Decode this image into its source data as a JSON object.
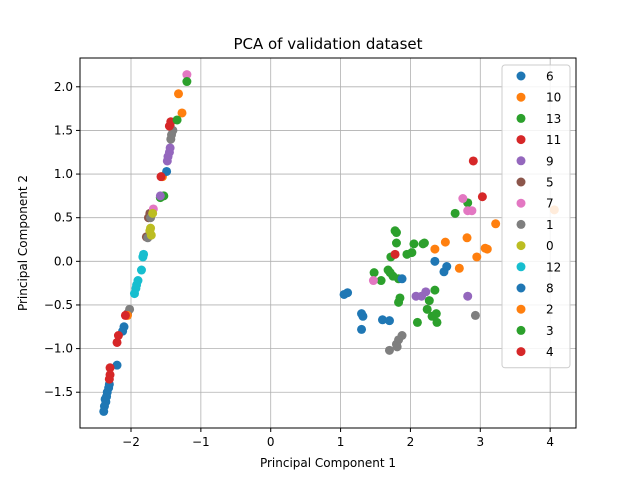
{
  "chart_data": {
    "type": "scatter",
    "title": "PCA of validation dataset",
    "xlabel": "Principal Component 1",
    "ylabel": "Principal Component 2",
    "xlim": [
      -2.73,
      4.37
    ],
    "ylim": [
      -1.91,
      2.33
    ],
    "xticks": [
      -2,
      -1,
      0,
      1,
      2,
      3,
      4
    ],
    "yticks": [
      -1.5,
      -1.0,
      -0.5,
      0.0,
      0.5,
      1.0,
      1.5,
      2.0
    ],
    "grid": true,
    "legend_position": "top-right",
    "series": [
      {
        "name": "6",
        "color": "#1f77b4",
        "points": [
          [
            -2.37,
            -1.58
          ],
          [
            -2.36,
            -1.61
          ],
          [
            -2.38,
            -1.66
          ],
          [
            -2.39,
            -1.72
          ],
          [
            -2.34,
            -1.5
          ],
          [
            -2.31,
            -1.41
          ],
          [
            -2.32,
            -1.45
          ],
          [
            -2.35,
            -1.55
          ]
        ]
      },
      {
        "name": "10",
        "color": "#ff7f0e",
        "points": [
          [
            -1.27,
            1.7
          ],
          [
            -1.32,
            1.92
          ],
          [
            -1.55,
            0.97
          ],
          [
            2.35,
            0.14
          ],
          [
            2.5,
            0.22
          ],
          [
            2.7,
            -0.08
          ],
          [
            2.81,
            0.27
          ],
          [
            2.95,
            0.05
          ],
          [
            3.07,
            0.15
          ],
          [
            3.1,
            0.14
          ],
          [
            3.22,
            0.43
          ],
          [
            4.06,
            0.59
          ]
        ]
      },
      {
        "name": "13",
        "color": "#2ca02c",
        "points": [
          [
            -1.58,
            0.73
          ],
          [
            -1.53,
            0.75
          ],
          [
            1.48,
            -0.13
          ],
          [
            1.58,
            -0.22
          ],
          [
            1.68,
            -0.1
          ],
          [
            1.72,
            0.05
          ],
          [
            1.78,
            0.35
          ],
          [
            1.8,
            0.33
          ],
          [
            1.8,
            0.21
          ],
          [
            1.83,
            -0.2
          ],
          [
            1.85,
            -0.42
          ],
          [
            2.02,
            0.1
          ],
          [
            2.05,
            0.2
          ],
          [
            2.1,
            -0.7
          ],
          [
            2.18,
            0.2
          ],
          [
            2.2,
            0.21
          ],
          [
            2.24,
            -0.55
          ],
          [
            2.27,
            -0.45
          ],
          [
            2.31,
            -0.63
          ],
          [
            2.35,
            -0.33
          ],
          [
            2.37,
            -0.6
          ],
          [
            2.38,
            -0.7
          ],
          [
            2.64,
            0.55
          ],
          [
            2.82,
            0.67
          ],
          [
            1.75,
            -0.17
          ]
        ]
      },
      {
        "name": "11",
        "color": "#d62728",
        "points": [
          [
            -1.44,
            1.55
          ],
          [
            -1.43,
            1.6
          ],
          [
            2.9,
            1.15
          ],
          [
            3.03,
            0.74
          ]
        ]
      },
      {
        "name": "9",
        "color": "#9467bd",
        "points": [
          [
            -1.48,
            1.15
          ],
          [
            -1.47,
            1.2
          ],
          [
            -1.45,
            1.25
          ],
          [
            -1.44,
            1.3
          ],
          [
            -1.58,
            0.75
          ],
          [
            2.08,
            -0.4
          ],
          [
            2.16,
            -0.4
          ],
          [
            2.22,
            -0.35
          ],
          [
            2.82,
            -0.4
          ]
        ]
      },
      {
        "name": "5",
        "color": "#8c564b",
        "points": [
          [
            -1.75,
            0.5
          ],
          [
            -1.73,
            0.55
          ],
          [
            -1.78,
            0.28
          ],
          [
            -2.05,
            -0.6
          ]
        ]
      },
      {
        "name": "7",
        "color": "#e377c2",
        "points": [
          [
            -1.2,
            2.14
          ],
          [
            -1.68,
            0.6
          ],
          [
            1.47,
            -0.22
          ],
          [
            2.75,
            0.72
          ],
          [
            2.82,
            0.58
          ],
          [
            2.88,
            0.58
          ]
        ]
      },
      {
        "name": "1",
        "color": "#7f7f7f",
        "points": [
          [
            -1.42,
            1.45
          ],
          [
            -1.43,
            1.4
          ],
          [
            -1.4,
            1.5
          ],
          [
            -1.72,
            0.5
          ],
          [
            -1.76,
            0.27
          ],
          [
            -2.02,
            -0.55
          ],
          [
            1.7,
            -1.02
          ],
          [
            1.8,
            -0.95
          ],
          [
            1.83,
            -0.9
          ],
          [
            1.88,
            -0.85
          ],
          [
            1.81,
            -0.98
          ],
          [
            2.93,
            -0.62
          ]
        ]
      },
      {
        "name": "0",
        "color": "#bcbd22",
        "points": [
          [
            -1.72,
            0.38
          ],
          [
            -1.71,
            0.3
          ],
          [
            -1.73,
            0.35
          ],
          [
            -1.69,
            0.55
          ]
        ]
      },
      {
        "name": "12",
        "color": "#17becf",
        "points": [
          [
            -1.83,
            0.05
          ],
          [
            -1.82,
            0.08
          ],
          [
            -1.85,
            -0.1
          ],
          [
            -1.9,
            -0.22
          ],
          [
            -1.93,
            -0.31
          ],
          [
            -1.95,
            -0.37
          ],
          [
            -1.92,
            -0.27
          ]
        ]
      },
      {
        "name": "8",
        "color": "#1f77b4",
        "points": [
          [
            -1.49,
            1.03
          ],
          [
            -2.2,
            -1.19
          ],
          [
            -2.1,
            -0.75
          ],
          [
            -2.12,
            -0.8
          ],
          [
            1.05,
            -0.38
          ],
          [
            1.1,
            -0.36
          ],
          [
            1.3,
            -0.6
          ],
          [
            1.32,
            -0.63
          ],
          [
            1.3,
            -0.78
          ],
          [
            1.6,
            -0.67
          ],
          [
            1.7,
            -0.68
          ],
          [
            1.88,
            -0.2
          ],
          [
            2.35,
            0.0
          ],
          [
            2.48,
            -0.12
          ],
          [
            2.52,
            -0.06
          ]
        ]
      },
      {
        "name": "2",
        "color": "#ff7f0e",
        "points": [
          [
            -2.05,
            -0.62
          ]
        ]
      },
      {
        "name": "3",
        "color": "#2ca02c",
        "points": [
          [
            -1.2,
            2.06
          ],
          [
            -1.34,
            1.62
          ],
          [
            1.71,
            -0.13
          ],
          [
            1.83,
            -0.47
          ],
          [
            1.95,
            0.08
          ]
        ]
      },
      {
        "name": "4",
        "color": "#d62728",
        "points": [
          [
            -2.08,
            -0.62
          ],
          [
            -2.3,
            -1.22
          ],
          [
            -2.3,
            -1.3
          ],
          [
            -2.31,
            -1.35
          ],
          [
            -2.2,
            -0.93
          ],
          [
            -2.18,
            -0.85
          ],
          [
            -1.45,
            1.55
          ],
          [
            -1.57,
            0.97
          ],
          [
            1.78,
            0.08
          ]
        ]
      }
    ]
  }
}
